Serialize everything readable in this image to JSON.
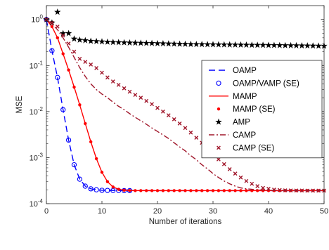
{
  "chart_data": {
    "type": "line",
    "xlabel": "Number of iterations",
    "ylabel": "MSE",
    "xlim": [
      0,
      50
    ],
    "ylim": [
      0.0001,
      2
    ],
    "yscale": "log",
    "xticks": [
      0,
      10,
      20,
      30,
      40,
      50
    ],
    "yticks": [
      {
        "value": 0.0001,
        "base": "10",
        "exp": "-4"
      },
      {
        "value": 0.001,
        "base": "10",
        "exp": "-3"
      },
      {
        "value": 0.01,
        "base": "10",
        "exp": "-2"
      },
      {
        "value": 0.1,
        "base": "10",
        "exp": "-1"
      },
      {
        "value": 1,
        "base": "10",
        "exp": "0"
      }
    ],
    "legend_position": "right",
    "series": [
      {
        "name": "OAMP",
        "color": "#0000ff",
        "style": "dashed",
        "marker": "none",
        "x": [
          0,
          1,
          2,
          3,
          4,
          5,
          6,
          7,
          8,
          9,
          10,
          12,
          15,
          20,
          30,
          40,
          50
        ],
        "y": [
          1.0,
          0.21,
          0.055,
          0.011,
          0.0024,
          0.0007,
          0.00034,
          0.00024,
          0.00021,
          0.0002,
          0.000195,
          0.000194,
          0.000193,
          0.000192,
          0.000192,
          0.000192,
          0.000192
        ]
      },
      {
        "name": "OAMP/VAMP (SE)",
        "color": "#0000ff",
        "style": "none",
        "marker": "circle",
        "x": [
          0,
          1,
          2,
          3,
          4,
          5,
          6,
          7,
          8,
          9,
          10,
          11,
          12,
          13,
          14,
          15
        ],
        "y": [
          1.0,
          0.21,
          0.055,
          0.011,
          0.0024,
          0.0007,
          0.00034,
          0.00024,
          0.00021,
          0.0002,
          0.000195,
          0.000194,
          0.000193,
          0.000193,
          0.000192,
          0.000192
        ]
      },
      {
        "name": "MAMP",
        "color": "#ff0000",
        "style": "solid",
        "marker": "none",
        "x": [
          0,
          1,
          2,
          3,
          4,
          5,
          6,
          7,
          8,
          9,
          10,
          11,
          12,
          13,
          14,
          15,
          16,
          18,
          20,
          30,
          40,
          50
        ],
        "y": [
          1.0,
          0.7,
          0.4,
          0.18,
          0.08,
          0.034,
          0.014,
          0.0055,
          0.0022,
          0.00095,
          0.00048,
          0.0003,
          0.00023,
          0.000205,
          0.000196,
          0.000193,
          0.000192,
          0.000192,
          0.000192,
          0.000192,
          0.000192,
          0.000192
        ]
      },
      {
        "name": "MAMP (SE)",
        "color": "#ff0000",
        "style": "none",
        "marker": "dot",
        "x": [
          0,
          1,
          2,
          3,
          4,
          5,
          6,
          7,
          8,
          9,
          10,
          11,
          12,
          13,
          14,
          15,
          16,
          17,
          18,
          19,
          20,
          21,
          22,
          23,
          24,
          25,
          26,
          27,
          28,
          29,
          30,
          31,
          32,
          33,
          34,
          35,
          36,
          37,
          38,
          39,
          40,
          41,
          42,
          43,
          44,
          45,
          46,
          47,
          48,
          49,
          50
        ],
        "y": [
          1.0,
          0.7,
          0.4,
          0.18,
          0.08,
          0.034,
          0.014,
          0.0055,
          0.0022,
          0.00095,
          0.00048,
          0.0003,
          0.00023,
          0.000205,
          0.000196,
          0.000193,
          0.000192,
          0.000192,
          0.000192,
          0.000192,
          0.000192,
          0.000192,
          0.000192,
          0.000192,
          0.000192,
          0.000192,
          0.000192,
          0.000192,
          0.000192,
          0.000192,
          0.000192,
          0.000192,
          0.000192,
          0.000192,
          0.000192,
          0.000192,
          0.000192,
          0.000192,
          0.000192,
          0.000192,
          0.000192,
          0.000192,
          0.000192,
          0.000192,
          0.000192,
          0.000192,
          0.000192,
          0.000192,
          0.000192,
          0.000192,
          0.000192
        ]
      },
      {
        "name": "AMP",
        "color": "#000000",
        "style": "none",
        "marker": "star",
        "x": [
          0,
          1,
          2,
          3,
          4,
          5,
          6,
          7,
          8,
          9,
          10,
          11,
          12,
          13,
          14,
          15,
          16,
          17,
          18,
          19,
          20,
          21,
          22,
          23,
          24,
          25,
          26,
          27,
          28,
          29,
          30,
          31,
          32,
          33,
          34,
          35,
          36,
          37,
          38,
          39,
          40,
          41,
          42,
          43,
          44,
          45,
          46,
          47,
          48,
          49,
          50
        ],
        "y": [
          1.0,
          0.85,
          1.45,
          0.5,
          0.5,
          0.38,
          0.36,
          0.35,
          0.34,
          0.335,
          0.33,
          0.325,
          0.32,
          0.318,
          0.315,
          0.312,
          0.31,
          0.308,
          0.306,
          0.304,
          0.302,
          0.3,
          0.298,
          0.296,
          0.294,
          0.292,
          0.29,
          0.289,
          0.288,
          0.287,
          0.286,
          0.285,
          0.284,
          0.283,
          0.282,
          0.281,
          0.28,
          0.279,
          0.278,
          0.277,
          0.276,
          0.275,
          0.274,
          0.273,
          0.272,
          0.271,
          0.27,
          0.269,
          0.268,
          0.267,
          0.266
        ]
      },
      {
        "name": "CAMP",
        "color": "#a0162a",
        "style": "dashdot",
        "marker": "none",
        "x": [
          0,
          1,
          2,
          3,
          4,
          5,
          6,
          7,
          8,
          9,
          10,
          11,
          12,
          13,
          14,
          15,
          16,
          17,
          18,
          19,
          20,
          21,
          22,
          23,
          24,
          25,
          26,
          27,
          28,
          29,
          30,
          31,
          32,
          33,
          34,
          35,
          36,
          38,
          40,
          45,
          50
        ],
        "y": [
          1.0,
          0.8,
          0.6,
          0.4,
          0.25,
          0.15,
          0.09,
          0.058,
          0.04,
          0.03,
          0.024,
          0.02,
          0.016,
          0.013,
          0.011,
          0.009,
          0.0075,
          0.0063,
          0.0053,
          0.0044,
          0.0037,
          0.0031,
          0.0026,
          0.0021,
          0.0017,
          0.0014,
          0.0011,
          0.0009,
          0.0007,
          0.00057,
          0.00045,
          0.00037,
          0.00031,
          0.00027,
          0.00024,
          0.00022,
          0.00021,
          0.0002,
          0.000195,
          0.000192,
          0.000192
        ]
      },
      {
        "name": "CAMP (SE)",
        "color": "#a0162a",
        "style": "none",
        "marker": "x",
        "x": [
          0,
          1,
          2,
          3,
          4,
          5,
          6,
          7,
          8,
          9,
          10,
          11,
          12,
          13,
          14,
          15,
          16,
          17,
          18,
          19,
          20,
          21,
          22,
          23,
          24,
          25,
          26,
          27,
          28,
          29,
          30,
          31,
          32,
          33,
          34,
          35,
          36,
          37,
          38,
          39,
          40,
          41,
          42,
          43,
          44,
          45,
          46,
          47,
          48,
          49,
          50
        ],
        "y": [
          1.0,
          0.85,
          0.7,
          0.45,
          0.3,
          0.2,
          0.14,
          0.12,
          0.105,
          0.088,
          0.07,
          0.055,
          0.045,
          0.038,
          0.032,
          0.027,
          0.023,
          0.02,
          0.017,
          0.0145,
          0.012,
          0.01,
          0.0083,
          0.0068,
          0.0055,
          0.0044,
          0.0035,
          0.0027,
          0.0021,
          0.0016,
          0.0012,
          0.00092,
          0.00072,
          0.00056,
          0.00045,
          0.00037,
          0.00031,
          0.00027,
          0.00024,
          0.00022,
          0.00021,
          0.000202,
          0.000198,
          0.000195,
          0.000194,
          0.000193,
          0.000193,
          0.000192,
          0.000192,
          0.000192,
          0.000192
        ]
      }
    ]
  }
}
